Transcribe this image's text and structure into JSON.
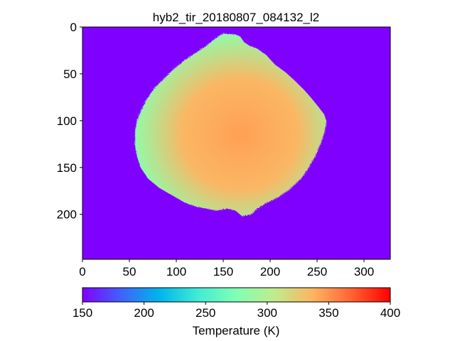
{
  "chart_data": {
    "type": "heatmap",
    "title": "hyb2_tir_20180807_084132_l2",
    "xlabel": "",
    "ylabel": "",
    "x_range": [
      0,
      328
    ],
    "y_range": [
      248,
      0
    ],
    "x_ticks": [
      0,
      50,
      100,
      150,
      200,
      250,
      300
    ],
    "y_ticks": [
      0,
      50,
      100,
      150,
      200
    ],
    "grid": false,
    "colormap": "rainbow",
    "background_value": 150,
    "colorbar": {
      "label": "Temperature (K)",
      "range": [
        150,
        400
      ],
      "ticks": [
        150,
        200,
        250,
        300,
        350,
        400
      ],
      "orientation": "horizontal",
      "placement": "bottom"
    },
    "object": {
      "name": "",
      "outline": [
        [
          150,
          7
        ],
        [
          163,
          8
        ],
        [
          168,
          10
        ],
        [
          172,
          16
        ],
        [
          178,
          20
        ],
        [
          186,
          23
        ],
        [
          196,
          30
        ],
        [
          205,
          40
        ],
        [
          216,
          48
        ],
        [
          226,
          57
        ],
        [
          236,
          67
        ],
        [
          244,
          76
        ],
        [
          252,
          86
        ],
        [
          258,
          94
        ],
        [
          260,
          102
        ],
        [
          258,
          112
        ],
        [
          254,
          124
        ],
        [
          248,
          138
        ],
        [
          240,
          152
        ],
        [
          232,
          163
        ],
        [
          220,
          174
        ],
        [
          208,
          182
        ],
        [
          196,
          188
        ],
        [
          186,
          194
        ],
        [
          180,
          200
        ],
        [
          170,
          202
        ],
        [
          163,
          196
        ],
        [
          154,
          194
        ],
        [
          142,
          196
        ],
        [
          132,
          194
        ],
        [
          122,
          192
        ],
        [
          110,
          188
        ],
        [
          96,
          180
        ],
        [
          82,
          172
        ],
        [
          70,
          162
        ],
        [
          62,
          150
        ],
        [
          58,
          138
        ],
        [
          56,
          126
        ],
        [
          56,
          112
        ],
        [
          58,
          100
        ],
        [
          62,
          90
        ],
        [
          68,
          78
        ],
        [
          76,
          66
        ],
        [
          86,
          56
        ],
        [
          96,
          46
        ],
        [
          108,
          36
        ],
        [
          120,
          28
        ],
        [
          132,
          20
        ],
        [
          142,
          12
        ]
      ],
      "limb_temperature_K": 285,
      "interior_temperature_K": 335,
      "hot_region_temperature_K": 345
    }
  }
}
